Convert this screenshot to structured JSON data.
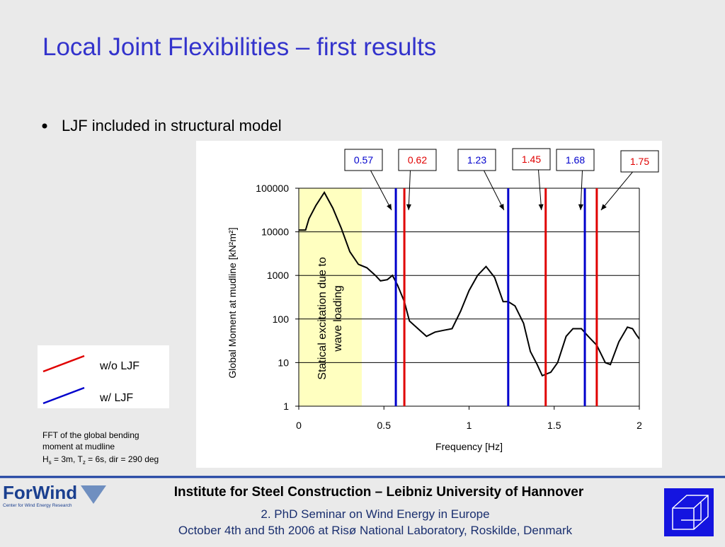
{
  "title": "Local Joint Flexibilities – first results",
  "bullet": "LJF included in structural model",
  "note": {
    "lines": [
      "FFT of the global bending",
      "moment at mudline"
    ],
    "formula": [
      {
        "text": "H"
      },
      {
        "text": "s",
        "sub": true
      },
      {
        "text": " = 3m, T"
      },
      {
        "text": "z",
        "sub": true
      },
      {
        "text": " = 6s, dir = 290 deg"
      }
    ]
  },
  "footer": {
    "institute": "Institute for Steel Construction – Leibniz University of Hannover",
    "event": "2. PhD Seminar on Wind Energy in Europe",
    "date": "October 4th and 5th 2006 at Risø National Laboratory, Roskilde, Denmark",
    "logo": "ForWind",
    "logo_sub": "Center for Wind Energy Research"
  },
  "chart_data": {
    "type": "line",
    "xlabel": "Frequency [Hz]",
    "ylabel": "Global Moment at mudline [kN²m²]",
    "x": [
      0,
      0.04,
      0.06,
      0.1,
      0.15,
      0.2,
      0.25,
      0.3,
      0.35,
      0.4,
      0.45,
      0.48,
      0.52,
      0.55,
      0.58,
      0.62,
      0.65,
      0.7,
      0.75,
      0.8,
      0.85,
      0.9,
      0.95,
      1.0,
      1.05,
      1.1,
      1.15,
      1.2,
      1.23,
      1.27,
      1.32,
      1.36,
      1.4,
      1.43,
      1.48,
      1.52,
      1.57,
      1.61,
      1.66,
      1.7,
      1.75,
      1.8,
      1.83,
      1.88,
      1.93,
      1.96,
      1.98,
      2.0
    ],
    "series": [
      {
        "color": "#000000",
        "values": [
          11000,
          11000,
          20000,
          40000,
          80000,
          35000,
          12000,
          3500,
          1800,
          1500,
          1000,
          750,
          800,
          1000,
          600,
          250,
          90,
          60,
          40,
          50,
          55,
          60,
          150,
          450,
          1000,
          1600,
          900,
          250,
          250,
          200,
          80,
          18,
          9,
          5,
          6,
          10,
          40,
          60,
          60,
          40,
          25,
          10,
          9,
          30,
          65,
          60,
          45,
          35
        ]
      }
    ],
    "xlim": [
      0,
      2
    ],
    "xticks": [
      0,
      0.5,
      1,
      1.5,
      2
    ],
    "ylim": [
      1,
      100000
    ],
    "yticks": [
      1,
      10,
      100,
      1000,
      10000,
      100000
    ],
    "log_y": true,
    "grid": true,
    "shaded": {
      "xlim": [
        0,
        0.37
      ],
      "color": "#ffffc0",
      "label": [
        "Statical excitation due to",
        "wave loading"
      ]
    },
    "markers": [
      {
        "x": 0.57,
        "color": "#0000cc"
      },
      {
        "x": 0.62,
        "color": "#e00000"
      },
      {
        "x": 1.23,
        "color": "#0000cc"
      },
      {
        "x": 1.45,
        "color": "#e00000"
      },
      {
        "x": 1.68,
        "color": "#0000cc"
      },
      {
        "x": 1.75,
        "color": "#e00000"
      }
    ],
    "legend": [
      {
        "name": "w/o LJF",
        "color": "#e00000"
      },
      {
        "name": "w/ LJF",
        "color": "#0000cc"
      }
    ]
  }
}
